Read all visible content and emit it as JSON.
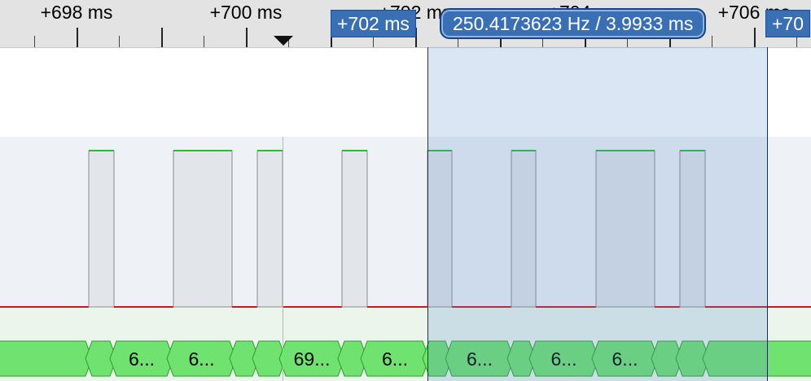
{
  "ruler": {
    "labels": [
      "+698 ms",
      "+700 ms",
      "+702 ms",
      "+704 ms",
      "+706 ms"
    ]
  },
  "markers": {
    "selection_start": "+702 ms",
    "selection_end": "+70"
  },
  "measurement": {
    "label": "250.4173623 Hz / 3.9933 ms"
  },
  "bus": {
    "labels": [
      "6...",
      "6...",
      "69...",
      "6...",
      "6...",
      "6...",
      "6..."
    ]
  },
  "colors": {
    "high_level": "#22c22a",
    "low_level": "#c81818",
    "pulse_fill": "#e2e5ea",
    "pulse_edge": "#8a8a8a",
    "bus_fill": "#6fe26f",
    "bus_edge": "#2e9a2e",
    "digital_bg": "#eef1f5",
    "bus_bg": "#ecf5ec",
    "selection": "#3a6fb3"
  }
}
